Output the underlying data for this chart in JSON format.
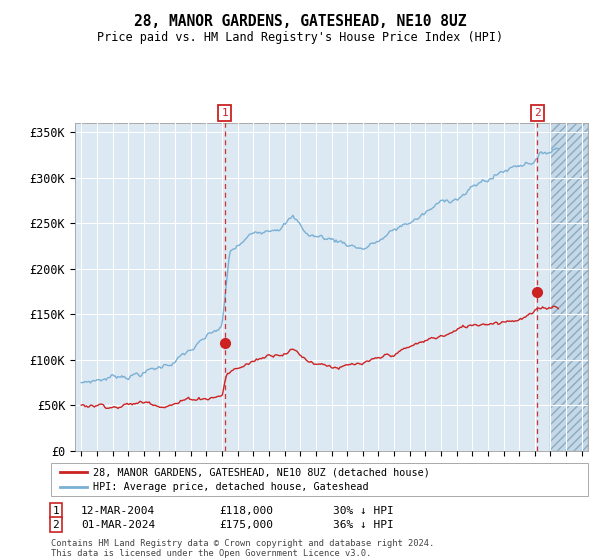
{
  "title": "28, MANOR GARDENS, GATESHEAD, NE10 8UZ",
  "subtitle": "Price paid vs. HM Land Registry's House Price Index (HPI)",
  "background_color": "#dce8f2",
  "hatch_color": "#b8cfe0",
  "ylim": [
    0,
    360000
  ],
  "yticks": [
    0,
    50000,
    100000,
    150000,
    200000,
    250000,
    300000,
    350000
  ],
  "ytick_labels": [
    "£0",
    "£50K",
    "£100K",
    "£150K",
    "£200K",
    "£250K",
    "£300K",
    "£350K"
  ],
  "hpi_color": "#7ab0d4",
  "price_color": "#cc2222",
  "marker1_year": 2004.17,
  "marker1_price": 118000,
  "marker1_label": "12-MAR-2004",
  "marker1_text": "£118,000",
  "marker1_note": "30% ↓ HPI",
  "marker2_year": 2024.17,
  "marker2_price": 175000,
  "marker2_label": "01-MAR-2024",
  "marker2_text": "£175,000",
  "marker2_note": "36% ↓ HPI",
  "footer": "Contains HM Land Registry data © Crown copyright and database right 2024.\nThis data is licensed under the Open Government Licence v3.0.",
  "legend_line1": "28, MANOR GARDENS, GATESHEAD, NE10 8UZ (detached house)",
  "legend_line2": "HPI: Average price, detached house, Gateshead"
}
